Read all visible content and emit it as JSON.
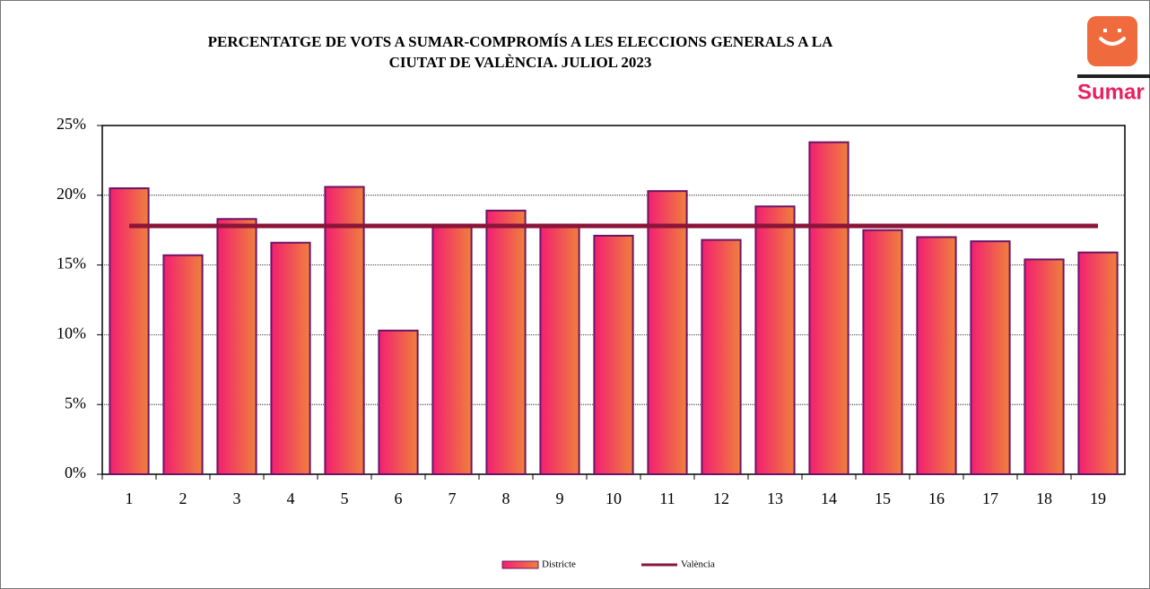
{
  "chart_data": {
    "type": "bar",
    "title": [
      "PERCENTATGE DE VOTS A SUMAR-COMPROMÍS A LES ELECCIONS GENERALS A LA",
      "CIUTAT DE VALÈNCIA. JULIOL 2023"
    ],
    "logo": "Sumar",
    "categories": [
      "1",
      "2",
      "3",
      "4",
      "5",
      "6",
      "7",
      "8",
      "9",
      "10",
      "11",
      "12",
      "13",
      "14",
      "15",
      "16",
      "17",
      "18",
      "19"
    ],
    "series": [
      {
        "name": "Districte",
        "type": "bar",
        "color": [
          "#f21f72",
          "#f0803c"
        ],
        "values": [
          20.5,
          15.7,
          18.3,
          16.6,
          20.6,
          10.3,
          17.9,
          18.9,
          17.9,
          17.1,
          20.3,
          16.8,
          19.2,
          23.8,
          17.5,
          17.0,
          16.7,
          15.4,
          15.9
        ]
      },
      {
        "name": "València",
        "type": "line",
        "color": "#8b1538",
        "values": [
          17.8,
          17.8,
          17.8,
          17.8,
          17.8,
          17.8,
          17.8,
          17.8,
          17.8,
          17.8,
          17.8,
          17.8,
          17.8,
          17.8,
          17.8,
          17.8,
          17.8,
          17.8,
          17.8
        ]
      }
    ],
    "ylim": [
      0,
      25
    ],
    "yticks": [
      {
        "value": 0,
        "label": "0%"
      },
      {
        "value": 5,
        "label": "5%"
      },
      {
        "value": 10,
        "label": "10%"
      },
      {
        "value": 15,
        "label": "15%"
      },
      {
        "value": 20,
        "label": "20%"
      },
      {
        "value": 25,
        "label": "25%"
      }
    ],
    "grid": true,
    "legend": "bottom"
  }
}
